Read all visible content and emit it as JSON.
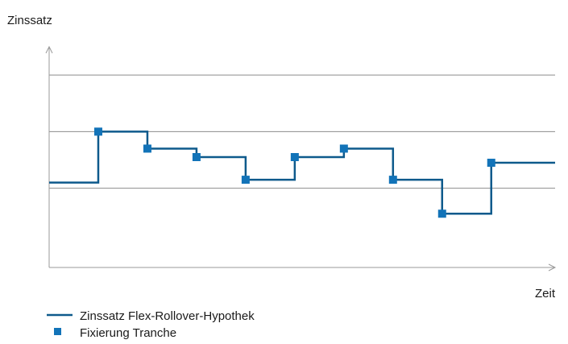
{
  "chart_data": {
    "type": "line",
    "ylabel": "Zinssatz",
    "xlabel": "Zeit",
    "grid": true,
    "legend_placement": "bottom-left",
    "colors": {
      "line": "#0e5a8c",
      "marker": "#1273b8",
      "grid": "#8c8c8c",
      "axis": "#9a9a9a"
    },
    "series": [
      {
        "name": "Zinssatz Flex-Rollover-Hypothek",
        "style": "step",
        "x": [
          0,
          1,
          2,
          3,
          4,
          5,
          6,
          7,
          8,
          9,
          10
        ],
        "y": [
          1.1,
          2.0,
          1.7,
          1.55,
          1.15,
          1.55,
          1.7,
          1.15,
          0.55,
          1.45,
          1.45
        ]
      },
      {
        "name": "Fixierung Tranche",
        "style": "marker",
        "x": [
          1,
          2,
          3,
          4,
          5,
          6,
          7,
          8,
          9
        ],
        "y": [
          2.0,
          1.7,
          1.55,
          1.15,
          1.55,
          1.7,
          1.15,
          0.55,
          1.45
        ]
      }
    ],
    "xlim": [
      0,
      10.3
    ],
    "ylim": [
      -0.4,
      3.5
    ],
    "y_gridlines": [
      1.0,
      2.0,
      3.0
    ]
  }
}
